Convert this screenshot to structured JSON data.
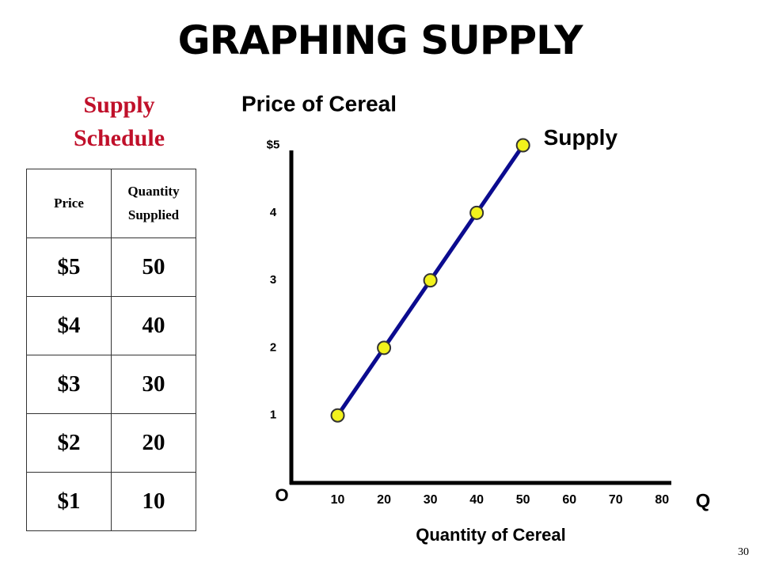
{
  "title": "GRAPHING SUPPLY",
  "schedule_title": "Supply Schedule",
  "table": {
    "header": [
      "Price",
      "Quantity Supplied"
    ],
    "rows": [
      [
        "$5",
        "50"
      ],
      [
        "$4",
        "40"
      ],
      [
        "$3",
        "30"
      ],
      [
        "$2",
        "20"
      ],
      [
        "$1",
        "10"
      ]
    ]
  },
  "page_number": "30",
  "chart_data": {
    "type": "line",
    "y_label": "Price of Cereal",
    "x_label": "Quantity of Cereal",
    "origin_label": "O",
    "x_axis_symbol": "Q",
    "x": [
      10,
      20,
      30,
      40,
      50
    ],
    "series": [
      {
        "name": "Supply",
        "color": "#0b0b8f",
        "marker_color": "#f2f21c",
        "values": [
          1,
          2,
          3,
          4,
          5
        ]
      }
    ],
    "xlim": [
      0,
      82
    ],
    "xticks": [
      10,
      20,
      30,
      40,
      50,
      60,
      70,
      80
    ],
    "ylim": [
      0,
      5.1
    ],
    "yticks": [
      1,
      2,
      3,
      4,
      {
        "value": 5,
        "label": "$5"
      }
    ],
    "grid": false
  }
}
